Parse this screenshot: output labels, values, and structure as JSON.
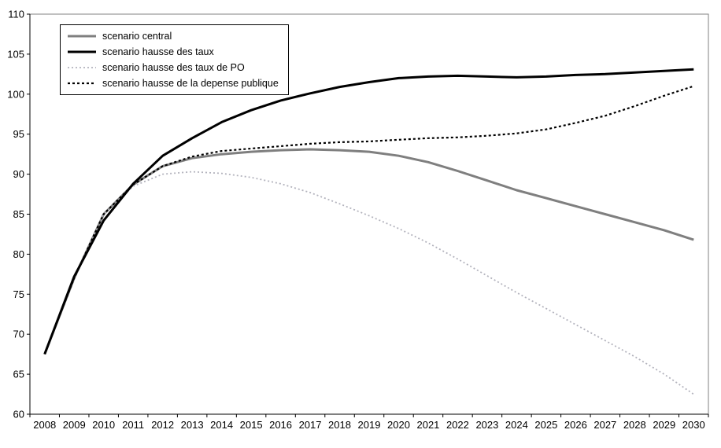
{
  "chart_data": {
    "type": "line",
    "title": "",
    "xlabel": "",
    "ylabel": "",
    "ylim": [
      60,
      110
    ],
    "ytick_step": 5,
    "grid": false,
    "legend_position": "top-left",
    "categories": [
      "2008",
      "2009",
      "2010",
      "2011",
      "2012",
      "2013",
      "2014",
      "2015",
      "2016",
      "2017",
      "2018",
      "2019",
      "2020",
      "2021",
      "2022",
      "2023",
      "2024",
      "2025",
      "2026",
      "2027",
      "2028",
      "2029",
      "2030"
    ],
    "series": [
      {
        "name": "scenario central",
        "color": "#7f7f7f",
        "width": 3,
        "dash": "",
        "values": [
          67.5,
          77,
          85,
          88.7,
          91,
          92,
          92.5,
          92.8,
          93,
          93.1,
          93,
          92.8,
          92.3,
          91.5,
          90.4,
          89.2,
          88,
          87,
          86,
          85,
          84,
          83,
          81.8
        ]
      },
      {
        "name": "scenario hausse des taux",
        "color": "#000000",
        "width": 3,
        "dash": "",
        "values": [
          67.5,
          77.2,
          84.2,
          88.8,
          92.3,
          94.5,
          96.5,
          98,
          99.2,
          100.1,
          100.9,
          101.5,
          102,
          102.2,
          102.3,
          102.2,
          102.1,
          102.2,
          102.4,
          102.5,
          102.7,
          102.9,
          103.1
        ]
      },
      {
        "name": "scenario hausse des taux de PO",
        "color": "#b3b3bd",
        "width": 1.8,
        "dash": "2 3",
        "values": [
          67.5,
          77,
          85,
          88.5,
          90,
          90.3,
          90.1,
          89.6,
          88.8,
          87.7,
          86.3,
          84.8,
          83.2,
          81.4,
          79.4,
          77.3,
          75.2,
          73.2,
          71.2,
          69.2,
          67.2,
          65,
          62.5
        ]
      },
      {
        "name": "scenario hausse de la depense publique",
        "color": "#000000",
        "width": 2.2,
        "dash": "3 3",
        "values": [
          67.5,
          77,
          85,
          88.7,
          91,
          92.2,
          92.9,
          93.2,
          93.5,
          93.8,
          94,
          94.1,
          94.3,
          94.5,
          94.6,
          94.8,
          95.1,
          95.6,
          96.4,
          97.3,
          98.5,
          99.8,
          101
        ]
      }
    ]
  }
}
